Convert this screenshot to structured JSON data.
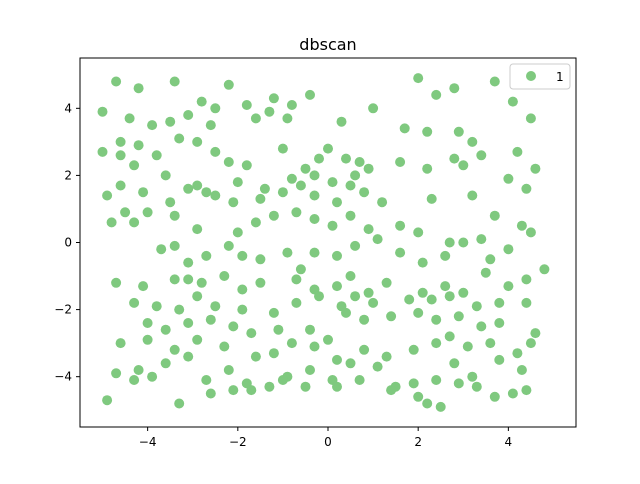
{
  "chart_data": {
    "type": "scatter",
    "title": "dbscan",
    "xlabel": "",
    "ylabel": "",
    "xlim": [
      -5.5,
      5.5
    ],
    "ylim": [
      -5.5,
      5.5
    ],
    "xticks": [
      -4,
      -2,
      0,
      2,
      4
    ],
    "yticks": [
      -4,
      -2,
      0,
      2,
      4
    ],
    "xtick_labels": [
      "−4",
      "−2",
      "0",
      "2",
      "4"
    ],
    "ytick_labels": [
      "−4",
      "−2",
      "0",
      "2",
      "4"
    ],
    "grid": false,
    "legend_position": "top-right",
    "series": [
      {
        "name": "1",
        "color": "#7fc97f",
        "points": [
          [
            -4.7,
            4.8
          ],
          [
            -4.2,
            4.6
          ],
          [
            -3.4,
            4.8
          ],
          [
            -3.5,
            3.6
          ],
          [
            -2.8,
            4.2
          ],
          [
            -2.5,
            4.0
          ],
          [
            -2.2,
            4.7
          ],
          [
            -1.8,
            4.1
          ],
          [
            -1.2,
            4.3
          ],
          [
            -0.8,
            4.1
          ],
          [
            -0.4,
            4.4
          ],
          [
            1.0,
            4.0
          ],
          [
            2.0,
            4.9
          ],
          [
            2.4,
            4.4
          ],
          [
            2.8,
            4.6
          ],
          [
            3.7,
            4.8
          ],
          [
            4.1,
            4.2
          ],
          [
            4.5,
            3.7
          ],
          [
            -5.0,
            3.9
          ],
          [
            -4.4,
            3.7
          ],
          [
            -3.9,
            3.5
          ],
          [
            -3.1,
            3.8
          ],
          [
            -2.6,
            3.5
          ],
          [
            -1.6,
            3.7
          ],
          [
            -1.3,
            3.9
          ],
          [
            -0.9,
            3.7
          ],
          [
            0.3,
            3.6
          ],
          [
            1.7,
            3.4
          ],
          [
            2.2,
            3.3
          ],
          [
            2.9,
            3.3
          ],
          [
            3.2,
            3.0
          ],
          [
            -4.6,
            3.0
          ],
          [
            -4.2,
            2.9
          ],
          [
            -3.8,
            2.6
          ],
          [
            -3.3,
            3.1
          ],
          [
            -2.9,
            3.0
          ],
          [
            -2.5,
            2.7
          ],
          [
            -2.2,
            2.4
          ],
          [
            -1.8,
            2.3
          ],
          [
            -1.0,
            2.8
          ],
          [
            -0.5,
            2.2
          ],
          [
            -0.2,
            2.5
          ],
          [
            0.0,
            2.8
          ],
          [
            0.4,
            2.5
          ],
          [
            0.7,
            2.4
          ],
          [
            0.9,
            2.2
          ],
          [
            1.6,
            2.4
          ],
          [
            2.2,
            2.2
          ],
          [
            2.8,
            2.5
          ],
          [
            3.0,
            2.3
          ],
          [
            3.4,
            2.6
          ],
          [
            4.2,
            2.7
          ],
          [
            4.6,
            2.2
          ],
          [
            -5.0,
            2.7
          ],
          [
            -4.6,
            2.6
          ],
          [
            -4.3,
            2.3
          ],
          [
            -3.6,
            2.0
          ],
          [
            -3.1,
            1.6
          ],
          [
            -2.7,
            1.5
          ],
          [
            -2.0,
            1.8
          ],
          [
            -1.4,
            1.6
          ],
          [
            -0.8,
            1.9
          ],
          [
            -0.3,
            2.0
          ],
          [
            0.1,
            1.8
          ],
          [
            0.6,
            2.0
          ],
          [
            -4.9,
            1.4
          ],
          [
            -4.6,
            1.7
          ],
          [
            -4.1,
            1.5
          ],
          [
            -3.5,
            1.2
          ],
          [
            -2.9,
            1.7
          ],
          [
            -2.5,
            1.4
          ],
          [
            -2.1,
            1.2
          ],
          [
            -1.5,
            1.3
          ],
          [
            -1.0,
            1.5
          ],
          [
            -0.6,
            1.7
          ],
          [
            -0.3,
            1.4
          ],
          [
            0.2,
            1.2
          ],
          [
            0.5,
            1.7
          ],
          [
            0.8,
            1.5
          ],
          [
            1.2,
            1.2
          ],
          [
            2.3,
            1.3
          ],
          [
            3.2,
            1.4
          ],
          [
            4.0,
            1.9
          ],
          [
            4.4,
            1.6
          ],
          [
            -4.5,
            0.9
          ],
          [
            -4.0,
            0.9
          ],
          [
            -3.4,
            0.8
          ],
          [
            -2.9,
            0.4
          ],
          [
            -2.0,
            0.3
          ],
          [
            -1.6,
            0.6
          ],
          [
            -1.2,
            0.8
          ],
          [
            -0.7,
            0.9
          ],
          [
            -0.3,
            0.7
          ],
          [
            0.1,
            0.5
          ],
          [
            0.5,
            0.8
          ],
          [
            0.9,
            0.4
          ],
          [
            1.6,
            0.5
          ],
          [
            2.0,
            0.3
          ],
          [
            2.7,
            0.0
          ],
          [
            3.4,
            0.1
          ],
          [
            3.7,
            0.8
          ],
          [
            4.3,
            0.5
          ],
          [
            4.5,
            0.3
          ],
          [
            -4.8,
            0.6
          ],
          [
            -4.3,
            0.6
          ],
          [
            -3.7,
            -0.2
          ],
          [
            -3.4,
            -0.1
          ],
          [
            -3.1,
            -0.6
          ],
          [
            -2.7,
            -0.4
          ],
          [
            -2.2,
            -0.1
          ],
          [
            -1.9,
            -0.4
          ],
          [
            -1.5,
            -0.5
          ],
          [
            -0.9,
            -0.3
          ],
          [
            -0.6,
            -0.8
          ],
          [
            -0.3,
            -0.3
          ],
          [
            0.2,
            -0.4
          ],
          [
            0.6,
            -0.1
          ],
          [
            1.1,
            0.1
          ],
          [
            1.6,
            -0.3
          ],
          [
            2.1,
            -0.6
          ],
          [
            2.6,
            -0.4
          ],
          [
            3.0,
            0.0
          ],
          [
            3.6,
            -0.5
          ],
          [
            4.0,
            -0.2
          ],
          [
            4.8,
            -0.8
          ],
          [
            -4.7,
            -1.2
          ],
          [
            -4.1,
            -1.3
          ],
          [
            -3.4,
            -1.1
          ],
          [
            -3.1,
            -1.1
          ],
          [
            -2.8,
            -1.2
          ],
          [
            -2.3,
            -1.0
          ],
          [
            -1.9,
            -1.4
          ],
          [
            -1.5,
            -1.2
          ],
          [
            -0.7,
            -1.1
          ],
          [
            -0.3,
            -1.4
          ],
          [
            0.2,
            -1.3
          ],
          [
            0.5,
            -1.0
          ],
          [
            0.9,
            -1.5
          ],
          [
            1.3,
            -1.2
          ],
          [
            2.1,
            -1.5
          ],
          [
            2.6,
            -1.3
          ],
          [
            3.0,
            -1.5
          ],
          [
            3.5,
            -0.9
          ],
          [
            4.0,
            -1.3
          ],
          [
            4.4,
            -1.1
          ],
          [
            -4.3,
            -1.8
          ],
          [
            -3.8,
            -1.9
          ],
          [
            -3.3,
            -2.0
          ],
          [
            -2.9,
            -1.6
          ],
          [
            -2.5,
            -1.9
          ],
          [
            -1.9,
            -2.0
          ],
          [
            -1.2,
            -2.1
          ],
          [
            -0.7,
            -1.8
          ],
          [
            -0.2,
            -1.6
          ],
          [
            0.3,
            -1.9
          ],
          [
            0.6,
            -1.6
          ],
          [
            1.0,
            -1.8
          ],
          [
            1.8,
            -1.7
          ],
          [
            2.3,
            -1.7
          ],
          [
            2.7,
            -1.6
          ],
          [
            3.3,
            -1.9
          ],
          [
            3.8,
            -1.8
          ],
          [
            4.4,
            -1.8
          ],
          [
            -4.0,
            -2.4
          ],
          [
            -3.6,
            -2.6
          ],
          [
            -3.1,
            -2.4
          ],
          [
            -2.6,
            -2.3
          ],
          [
            -2.1,
            -2.5
          ],
          [
            -1.7,
            -2.7
          ],
          [
            -1.1,
            -2.6
          ],
          [
            -0.4,
            -2.6
          ],
          [
            0.0,
            -2.9
          ],
          [
            0.4,
            -2.1
          ],
          [
            0.8,
            -2.3
          ],
          [
            1.4,
            -2.2
          ],
          [
            2.0,
            -2.1
          ],
          [
            2.4,
            -2.3
          ],
          [
            2.9,
            -2.2
          ],
          [
            3.4,
            -2.5
          ],
          [
            3.8,
            -2.4
          ],
          [
            4.6,
            -2.7
          ],
          [
            -4.6,
            -3.0
          ],
          [
            -4.0,
            -2.9
          ],
          [
            -3.4,
            -3.2
          ],
          [
            -2.9,
            -2.9
          ],
          [
            -2.3,
            -3.1
          ],
          [
            -1.6,
            -3.4
          ],
          [
            -1.2,
            -3.3
          ],
          [
            -0.8,
            -3.0
          ],
          [
            -0.3,
            -3.1
          ],
          [
            0.2,
            -3.5
          ],
          [
            0.8,
            -3.2
          ],
          [
            1.3,
            -3.4
          ],
          [
            1.9,
            -3.2
          ],
          [
            2.4,
            -3.0
          ],
          [
            2.7,
            -2.8
          ],
          [
            3.1,
            -3.1
          ],
          [
            3.6,
            -3.0
          ],
          [
            4.2,
            -3.3
          ],
          [
            4.5,
            -3.0
          ],
          [
            -4.7,
            -3.9
          ],
          [
            -4.2,
            -3.8
          ],
          [
            -3.6,
            -3.6
          ],
          [
            -3.1,
            -3.4
          ],
          [
            -2.7,
            -4.1
          ],
          [
            -2.2,
            -3.8
          ],
          [
            -1.8,
            -4.2
          ],
          [
            -1.3,
            -4.3
          ],
          [
            -0.9,
            -4.0
          ],
          [
            -0.4,
            -3.8
          ],
          [
            0.1,
            -4.1
          ],
          [
            0.5,
            -3.6
          ],
          [
            1.1,
            -3.7
          ],
          [
            1.5,
            -4.3
          ],
          [
            2.0,
            -4.6
          ],
          [
            2.4,
            -4.1
          ],
          [
            2.8,
            -3.6
          ],
          [
            3.2,
            -4.0
          ],
          [
            3.8,
            -3.5
          ],
          [
            4.3,
            -3.8
          ],
          [
            -4.9,
            -4.7
          ],
          [
            -4.3,
            -4.1
          ],
          [
            -3.9,
            -4.0
          ],
          [
            -3.3,
            -4.8
          ],
          [
            -2.6,
            -4.5
          ],
          [
            -2.1,
            -4.4
          ],
          [
            -1.7,
            -4.4
          ],
          [
            -1.0,
            -4.1
          ],
          [
            -0.5,
            -4.3
          ],
          [
            0.2,
            -4.3
          ],
          [
            0.7,
            -4.1
          ],
          [
            1.4,
            -4.4
          ],
          [
            1.9,
            -4.2
          ],
          [
            2.2,
            -4.8
          ],
          [
            2.5,
            -4.9
          ],
          [
            2.9,
            -4.2
          ],
          [
            3.3,
            -4.3
          ],
          [
            3.7,
            -4.6
          ],
          [
            4.1,
            -4.5
          ],
          [
            4.4,
            -4.4
          ]
        ]
      }
    ]
  }
}
